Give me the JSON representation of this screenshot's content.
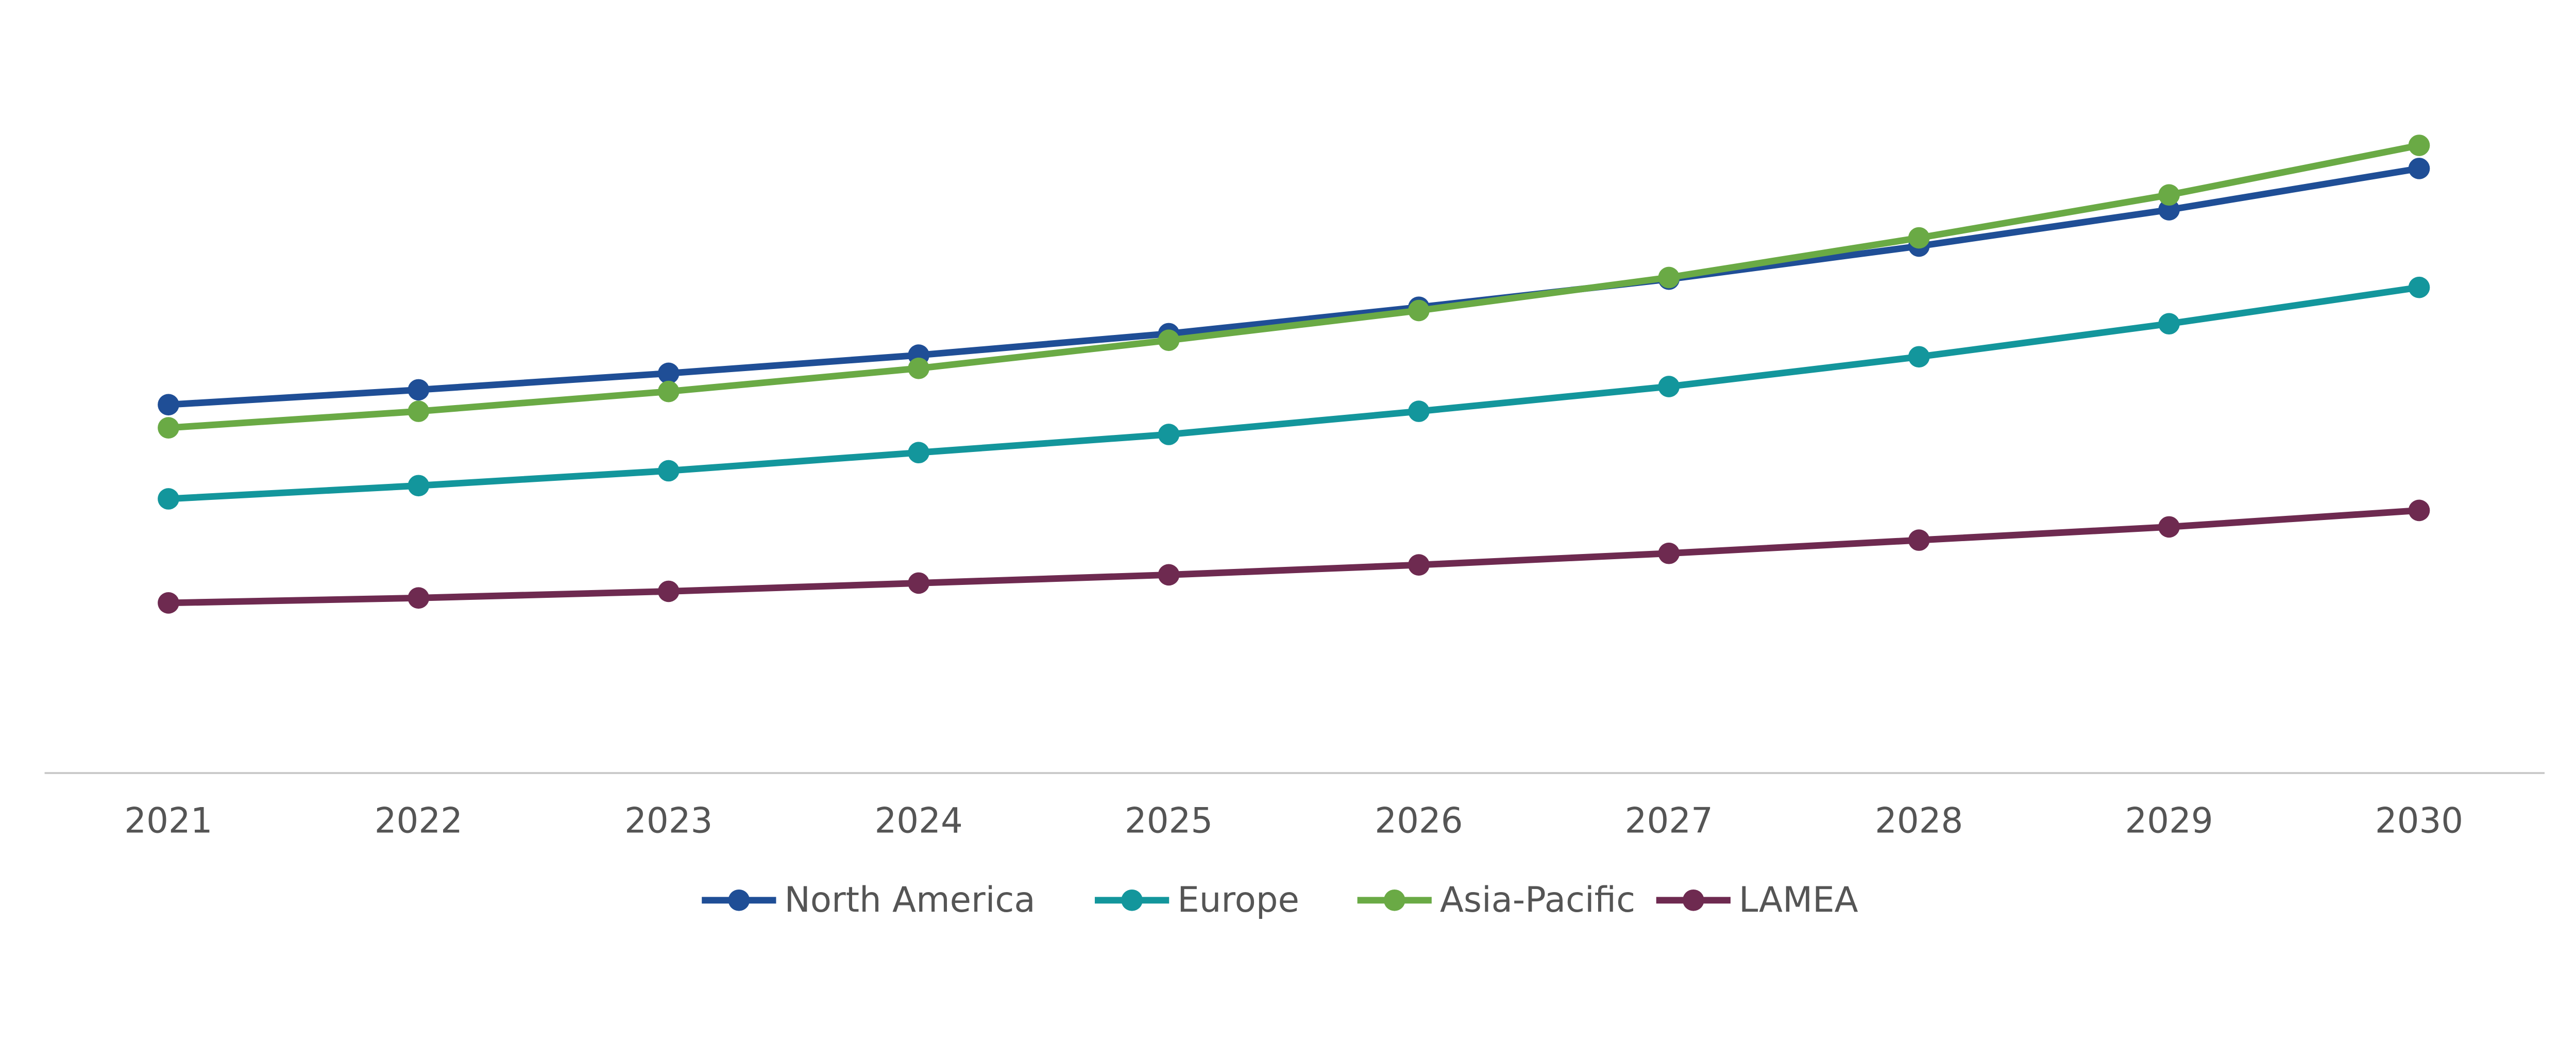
{
  "chart_data": {
    "type": "line",
    "title": "",
    "xlabel": "",
    "ylabel": "",
    "categories": [
      "2021",
      "2022",
      "2023",
      "2024",
      "2025",
      "2026",
      "2027",
      "2028",
      "2029",
      "2030"
    ],
    "y_axis_shown": false,
    "grid": false,
    "legend_position": "bottom",
    "ylim": [
      0,
      468
    ],
    "series": [
      {
        "name": "North America",
        "color": "#1f4e96",
        "values": [
          223,
          232,
          242,
          253,
          266,
          282,
          299,
          319,
          341,
          366
        ]
      },
      {
        "name": "Europe",
        "color": "#13969c",
        "values": [
          166,
          174,
          183,
          194,
          205,
          219,
          234,
          252,
          272,
          294
        ]
      },
      {
        "name": "Asia-Pacific",
        "color": "#6aaa45",
        "values": [
          209,
          219,
          231,
          245,
          262,
          280,
          300,
          324,
          350,
          380
        ]
      },
      {
        "name": "LAMEA",
        "color": "#6e2a50",
        "values": [
          103,
          106,
          110,
          115,
          120,
          126,
          133,
          141,
          149,
          159
        ]
      }
    ]
  }
}
